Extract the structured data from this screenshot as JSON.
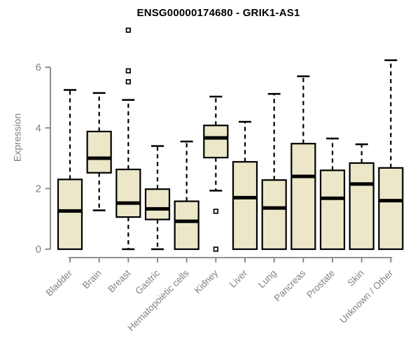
{
  "chart_data": {
    "type": "boxplot",
    "title": "ENSG00000174680 - GRIK1-AS1",
    "ylabel": "Expression",
    "xlabel": "",
    "ylim": [
      0,
      6
    ],
    "yticks": [
      0,
      2,
      4,
      6
    ],
    "grid": false,
    "legend": "none",
    "categories": [
      "Bladder",
      "Brain",
      "Breast",
      "Gastric",
      "Hematopoietic cells",
      "Kidney",
      "Liver",
      "Lung",
      "Pancreas",
      "Prostate",
      "Skin",
      "Unknown / Other"
    ],
    "series": [
      {
        "name": "Bladder",
        "whisker_low": 0,
        "q1": 0,
        "median": 1.26,
        "q3": 2.3,
        "whisker_high": 5.25,
        "outliers": []
      },
      {
        "name": "Brain",
        "whisker_low": 1.28,
        "q1": 2.52,
        "median": 3.0,
        "q3": 3.88,
        "whisker_high": 5.15,
        "outliers": []
      },
      {
        "name": "Breast",
        "whisker_low": 0,
        "q1": 1.06,
        "median": 1.52,
        "q3": 2.63,
        "whisker_high": 4.92,
        "outliers": [
          5.52,
          5.88,
          7.22
        ]
      },
      {
        "name": "Gastric",
        "whisker_low": 0,
        "q1": 0.98,
        "median": 1.33,
        "q3": 1.98,
        "whisker_high": 3.4,
        "outliers": []
      },
      {
        "name": "Hematopoietic cells",
        "whisker_low": 0,
        "q1": 0,
        "median": 0.92,
        "q3": 1.58,
        "whisker_high": 3.55,
        "outliers": []
      },
      {
        "name": "Kidney",
        "whisker_low": 1.93,
        "q1": 3.02,
        "median": 3.67,
        "q3": 4.08,
        "whisker_high": 5.03,
        "outliers": [
          1.25,
          0
        ]
      },
      {
        "name": "Liver",
        "whisker_low": 0,
        "q1": 0,
        "median": 1.7,
        "q3": 2.88,
        "whisker_high": 4.2,
        "outliers": []
      },
      {
        "name": "Lung",
        "whisker_low": 0,
        "q1": 0,
        "median": 1.36,
        "q3": 2.28,
        "whisker_high": 5.12,
        "outliers": []
      },
      {
        "name": "Pancreas",
        "whisker_low": 0,
        "q1": 0,
        "median": 2.4,
        "q3": 3.48,
        "whisker_high": 5.7,
        "outliers": []
      },
      {
        "name": "Prostate",
        "whisker_low": 0,
        "q1": 0,
        "median": 1.68,
        "q3": 2.6,
        "whisker_high": 3.65,
        "outliers": []
      },
      {
        "name": "Skin",
        "whisker_low": 0,
        "q1": 0,
        "median": 2.15,
        "q3": 2.84,
        "whisker_high": 3.46,
        "outliers": []
      },
      {
        "name": "Unknown / Other",
        "whisker_low": 0,
        "q1": 0,
        "median": 1.6,
        "q3": 2.68,
        "whisker_high": 6.23,
        "outliers": []
      }
    ],
    "colors": {
      "box_fill": "#ECE7C8",
      "box_stroke": "#000000",
      "median": "#000000",
      "whisker": "#000000",
      "outlier_stroke": "#000000",
      "outlier_fill": "#ffffff",
      "axis": "#828282",
      "tick_label": "#828282",
      "title": "#000000"
    }
  }
}
